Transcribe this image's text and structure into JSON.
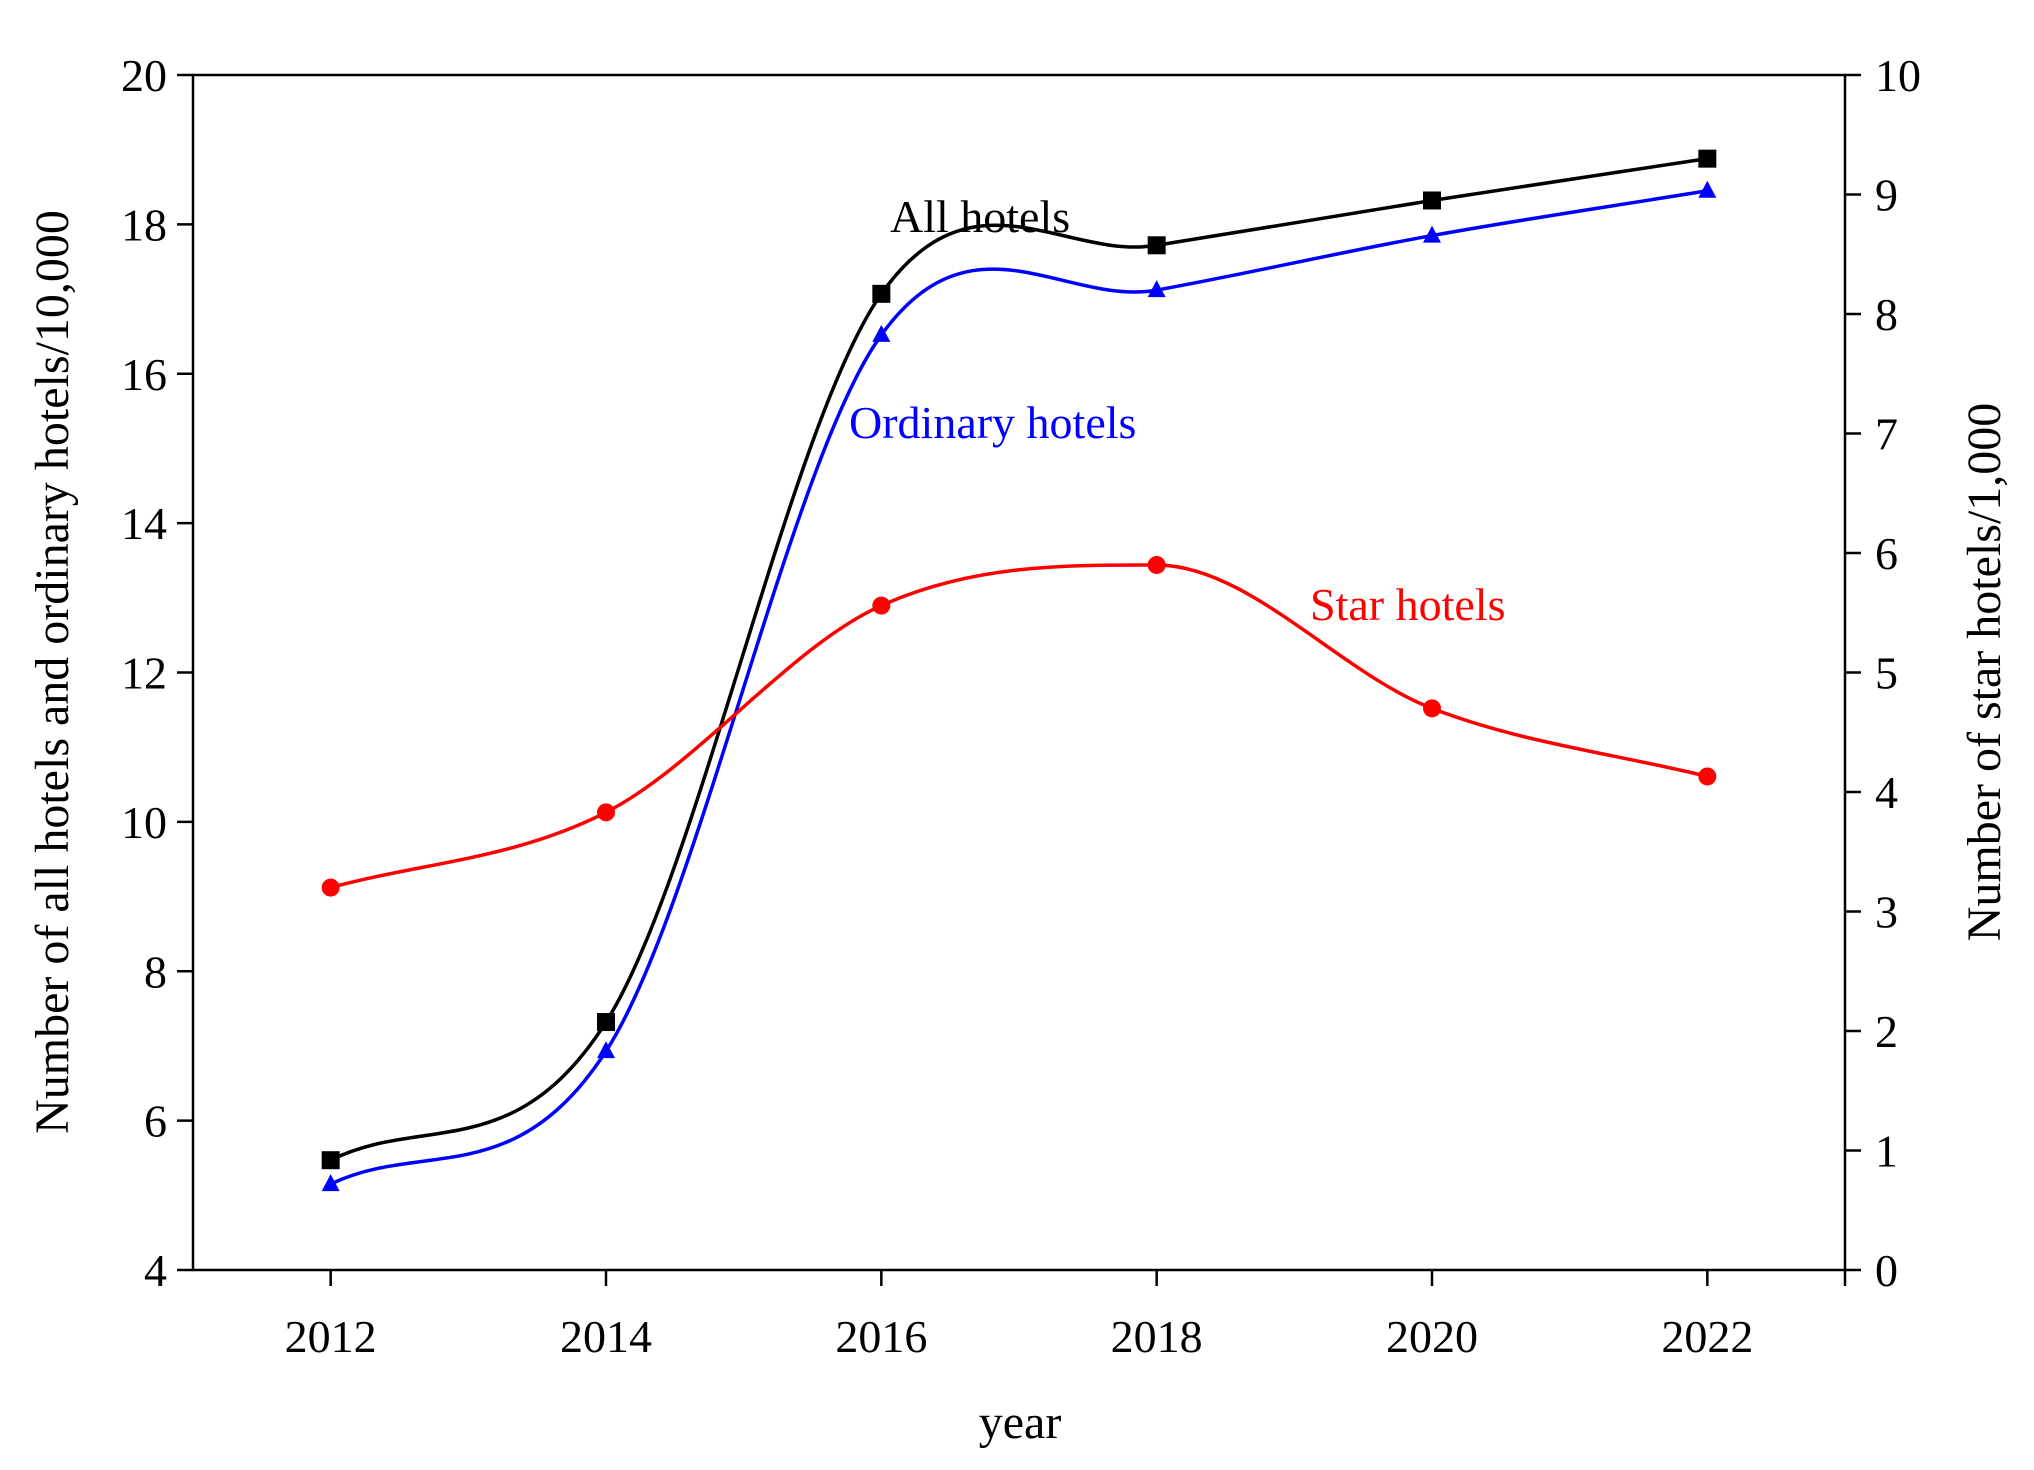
{
  "chart_data": {
    "type": "line",
    "x": [
      2012,
      2014,
      2016,
      2018,
      2020,
      2022
    ],
    "xlabel": "year",
    "xlim": [
      2011,
      2023
    ],
    "xticks": [
      2012,
      2014,
      2016,
      2018,
      2020,
      2022
    ],
    "xtick_labels": [
      "2012",
      "2014",
      "2016",
      "2018",
      "2020",
      "2022"
    ],
    "ylabel_left": "Number of all hotels and ordinary hotels/10,000",
    "ylim_left": [
      4,
      20
    ],
    "yticks_left": [
      4,
      6,
      8,
      10,
      12,
      14,
      16,
      18,
      20
    ],
    "ytick_labels_left": [
      "4",
      "6",
      "8",
      "10",
      "12",
      "14",
      "16",
      "18",
      "20"
    ],
    "ylabel_right": "Number of star hotels/1,000",
    "ylim_right": [
      0,
      10
    ],
    "yticks_right": [
      0,
      1,
      2,
      3,
      4,
      5,
      6,
      7,
      8,
      9,
      10
    ],
    "ytick_labels_right": [
      "0",
      "1",
      "2",
      "3",
      "4",
      "5",
      "6",
      "7",
      "8",
      "9",
      "10"
    ],
    "grid": false,
    "legend": "inline labels",
    "series": [
      {
        "name": "All hotels",
        "axis": "left",
        "color": "#000000",
        "marker": "square",
        "values": [
          5.47,
          7.32,
          17.07,
          17.72,
          18.32,
          18.88
        ]
      },
      {
        "name": "Ordinary hotels",
        "axis": "left",
        "color": "#0000ff",
        "marker": "triangle",
        "values": [
          5.15,
          6.93,
          16.52,
          17.12,
          17.85,
          18.45
        ]
      },
      {
        "name": "Star hotels",
        "axis": "right",
        "color": "#ff0000",
        "marker": "circle",
        "values": [
          3.2,
          3.83,
          5.56,
          5.9,
          4.7,
          4.13
        ]
      }
    ]
  }
}
